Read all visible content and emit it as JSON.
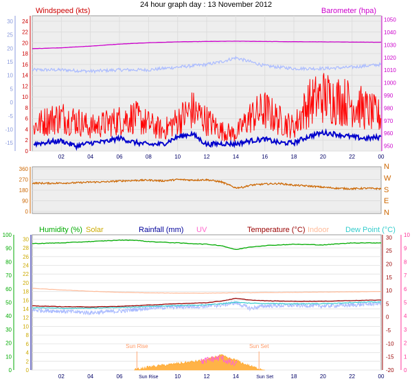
{
  "title": "24 hour graph day : 13 November 2012",
  "colors": {
    "windspeed": "#cc0000",
    "gust": "#ff0000",
    "wind_avg": "#0000cc",
    "barometer": "#cc00cc",
    "humidity": "#00aa00",
    "solar": "#ccaa00",
    "solar_fill": "#ffb347",
    "rainfall": "#000099",
    "uv": "#ff66cc",
    "temperature": "#990000",
    "indoor": "#ffbb99",
    "dewpoint": "#33cccc",
    "light_blue": "#aabbff",
    "direction": "#cc6600",
    "compass": "#cc6600",
    "axis_blue": "#8899dd",
    "axis_green": "#00aa00",
    "axis_pink": "#ff3399",
    "panel_bg": "#eeeeee"
  },
  "chart_data": [
    {
      "type": "line",
      "panel": "wind-barometer",
      "left_axis": {
        "label": "Windspeed (kts)",
        "ticks": [
          0,
          2,
          4,
          6,
          8,
          10,
          12,
          14,
          16,
          18,
          20,
          22,
          24
        ],
        "range": [
          0,
          25
        ]
      },
      "outer_left_axis": {
        "ticks": [
          -15,
          -10,
          -5,
          0,
          5,
          10,
          15,
          20,
          25,
          30
        ],
        "range": [
          -18,
          32
        ]
      },
      "right_axis": {
        "label": "Barometer (hpa)",
        "ticks": [
          950,
          960,
          970,
          980,
          990,
          1000,
          1010,
          1020,
          1030,
          1040,
          1050
        ],
        "range": [
          946,
          1053
        ]
      },
      "x_tick_labels": [
        "02",
        "04",
        "06",
        "08",
        "10",
        "12",
        "14",
        "16",
        "18",
        "20",
        "22",
        "00"
      ],
      "x_tick_hours": [
        2,
        4,
        6,
        8,
        10,
        12,
        14,
        16,
        18,
        20,
        22,
        24
      ],
      "series": [
        {
          "name": "Barometer",
          "axis": "right",
          "x": [
            0,
            2,
            4,
            6,
            8,
            10,
            12,
            14,
            16,
            18,
            20,
            22,
            24
          ],
          "values": [
            1027,
            1027.7,
            1029,
            1030.6,
            1031.7,
            1032.4,
            1032.7,
            1032.9,
            1032.7,
            1032.5,
            1032.4,
            1032.2,
            1032.1
          ]
        },
        {
          "name": "Windspeed",
          "axis": "left",
          "x": [
            0,
            1,
            2,
            3,
            4,
            5,
            6,
            7,
            8,
            9,
            10,
            11,
            12,
            13,
            14,
            15,
            16,
            17,
            18,
            19,
            20,
            21,
            22,
            23,
            24
          ],
          "values": [
            3.5,
            4.5,
            5,
            4.5,
            3.5,
            4,
            4.5,
            5,
            4,
            3,
            4.5,
            6,
            4.5,
            3,
            2.5,
            5,
            6,
            4.5,
            3.5,
            7,
            8,
            7.5,
            7,
            6,
            5
          ]
        },
        {
          "name": "Wind average",
          "axis": "left",
          "x": [
            0,
            1,
            2,
            3,
            4,
            5,
            6,
            7,
            8,
            9,
            10,
            11,
            12,
            13,
            14,
            15,
            16,
            17,
            18,
            19,
            20,
            21,
            22,
            23,
            24
          ],
          "values": [
            1.3,
            1.6,
            1.9,
            0.9,
            1.5,
            1.7,
            2.4,
            1.6,
            1.2,
            1.3,
            2.6,
            3.2,
            1.2,
            1.4,
            1.3,
            1.9,
            2.2,
            1.5,
            1.5,
            2.7,
            3.4,
            3.1,
            2.6,
            2.3,
            2.6
          ]
        },
        {
          "name": "Outer scale (light blue)",
          "axis": "outer_left",
          "x": [
            0,
            2,
            4,
            6,
            8,
            10,
            12,
            13,
            14,
            15,
            16,
            18,
            20,
            22,
            24
          ],
          "values": [
            12,
            12,
            11.5,
            12,
            12,
            13,
            14,
            15,
            16.5,
            15,
            13.5,
            12.5,
            12.5,
            13,
            14
          ]
        }
      ]
    },
    {
      "type": "line",
      "panel": "wind-direction",
      "left_axis": {
        "ticks": [
          0,
          90,
          180,
          270,
          360
        ],
        "range": [
          0,
          360
        ]
      },
      "right_axis": {
        "ticks": [
          "N",
          "W",
          "S",
          "E",
          "N"
        ]
      },
      "series": [
        {
          "name": "Wind direction",
          "x": [
            0,
            1,
            2,
            3,
            4,
            5,
            6,
            7,
            8,
            9,
            10,
            11,
            12,
            13,
            13.5,
            14,
            14.5,
            15,
            16,
            17,
            18,
            19,
            20,
            21,
            22,
            23,
            24
          ],
          "values": [
            240,
            238,
            240,
            242,
            248,
            250,
            258,
            262,
            265,
            258,
            270,
            265,
            268,
            250,
            225,
            200,
            205,
            222,
            232,
            236,
            222,
            215,
            205,
            196,
            192,
            196,
            192
          ]
        }
      ]
    },
    {
      "type": "line",
      "panel": "temp-humidity",
      "legend": [
        "Humidity (%)",
        "Solar",
        "Rainfall (mm)",
        "UV",
        "Temperature (°C)",
        "Indoor",
        "Dew Point (°C)"
      ],
      "left_outer_axis": {
        "ticks": [
          0,
          10,
          20,
          30,
          40,
          50,
          60,
          70,
          80,
          90,
          100
        ],
        "range": [
          0,
          100
        ]
      },
      "left_inner_axis": {
        "ticks": [
          0,
          2,
          4,
          6,
          8,
          10,
          12,
          14,
          16,
          18,
          20,
          22,
          24,
          26,
          28,
          30
        ],
        "range": [
          0,
          31
        ]
      },
      "right_inner_axis": {
        "ticks": [
          -20,
          -15,
          -10,
          -5,
          0,
          5,
          10,
          15,
          20,
          25,
          30
        ],
        "range": [
          -20,
          31
        ]
      },
      "right_outer_axis": {
        "ticks": [
          0,
          1,
          2,
          3,
          4,
          5,
          6,
          7,
          8,
          9,
          10
        ],
        "range": [
          0,
          10
        ]
      },
      "annotations": [
        "Sun Rise",
        "Sun Set"
      ],
      "x_tick_labels": [
        "02",
        "04",
        "06",
        "Sun Rise",
        "10",
        "12",
        "14",
        "Sun Set",
        "18",
        "20",
        "22",
        "00"
      ],
      "series": [
        {
          "name": "Humidity",
          "axis": "left_outer",
          "x": [
            0,
            2,
            4,
            6,
            7,
            8,
            10,
            12,
            13,
            14,
            15,
            16,
            18,
            20,
            22,
            24
          ],
          "values": [
            93.5,
            94,
            95,
            96,
            96,
            95,
            94,
            93,
            92,
            89,
            91,
            92,
            93,
            92.5,
            94,
            94
          ]
        },
        {
          "name": "Indoor",
          "axis": "right_inner",
          "x": [
            0,
            2,
            4,
            6,
            8,
            10,
            12,
            14,
            16,
            18,
            20,
            22,
            24
          ],
          "values": [
            10.8,
            10.2,
            9.7,
            9.3,
            9.1,
            9.0,
            9.0,
            9.1,
            9.2,
            9.3,
            9.4,
            9.5,
            9.6
          ]
        },
        {
          "name": "Temperature",
          "axis": "right_inner",
          "x": [
            0,
            2,
            4,
            6,
            8,
            10,
            12,
            13,
            14,
            15,
            16,
            18,
            20,
            22,
            24
          ],
          "values": [
            4.2,
            3.9,
            3.8,
            4.0,
            4.5,
            5.0,
            5.4,
            6.0,
            7.0,
            6.4,
            6.1,
            5.9,
            5.9,
            6.2,
            6.4
          ]
        },
        {
          "name": "Dew Point",
          "axis": "right_inner",
          "x": [
            0,
            2,
            4,
            6,
            8,
            10,
            12,
            13,
            14,
            15,
            16,
            18,
            20,
            22,
            24
          ],
          "values": [
            3.5,
            3.3,
            3.3,
            3.6,
            4.0,
            4.3,
            4.6,
            5.0,
            5.6,
            5.2,
            5.1,
            5.0,
            5.0,
            5.5,
            5.7
          ]
        },
        {
          "name": "Light blue",
          "axis": "right_inner",
          "x": [
            0,
            2,
            4,
            6,
            8,
            10,
            12,
            13,
            14,
            15,
            16,
            18,
            20,
            22,
            24
          ],
          "values": [
            2.6,
            2.2,
            1.6,
            2.2,
            3.4,
            3.8,
            4.1,
            4.5,
            5.4,
            3.2,
            4.2,
            4.4,
            4.2,
            4.5,
            5.2
          ]
        },
        {
          "name": "Solar",
          "axis": "left_inner",
          "x": [
            7.0,
            7.5,
            8,
            9,
            10,
            11,
            12,
            12.5,
            13,
            13.5,
            14,
            14.5,
            15,
            15.5,
            16
          ],
          "values": [
            0,
            0.2,
            0.6,
            1.0,
            1.4,
            1.8,
            2.2,
            2.8,
            3.3,
            2.6,
            2.2,
            1.4,
            0.8,
            0.3,
            0
          ]
        },
        {
          "name": "UV",
          "axis": "right_outer",
          "x": [
            11.6,
            12.3,
            13,
            13.3,
            13.7,
            14.1
          ],
          "values": [
            0.6,
            0.8,
            0.9,
            0.7,
            0.5,
            0.4
          ]
        }
      ]
    }
  ]
}
